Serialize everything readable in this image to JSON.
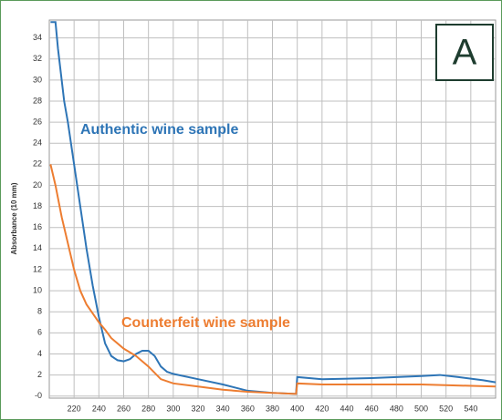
{
  "chart_data": {
    "type": "line",
    "panel_label": "A",
    "y_label": "Absorbance (10 mm)",
    "xlim": [
      200,
      560
    ],
    "xticks": [
      220,
      240,
      260,
      280,
      300,
      320,
      340,
      360,
      380,
      400,
      420,
      440,
      460,
      480,
      500,
      520,
      540
    ],
    "ylim": [
      -0.2,
      35.7
    ],
    "yticks": [
      {
        "value": 0,
        "label": "-0"
      },
      2,
      4,
      6,
      8,
      10,
      12,
      14,
      16,
      18,
      20,
      22,
      24,
      26,
      28,
      30,
      32,
      34
    ],
    "grid": true,
    "series": [
      {
        "name": "Authentic wine sample",
        "color": "#2e75b6",
        "x": [
          201,
          205,
          207,
          210,
          212,
          215,
          220,
          225,
          230,
          235,
          240,
          245,
          250,
          255,
          260,
          265,
          270,
          275,
          280,
          285,
          290,
          295,
          300,
          320,
          340,
          360,
          380,
          399,
          400,
          420,
          460,
          500,
          515,
          530,
          550,
          560
        ],
        "values": [
          35.5,
          35.5,
          33,
          30,
          28,
          26,
          22,
          18,
          14,
          10.5,
          7.5,
          5,
          3.8,
          3.4,
          3.3,
          3.5,
          4,
          4.3,
          4.3,
          3.8,
          2.8,
          2.3,
          2.1,
          1.6,
          1.1,
          0.5,
          0.3,
          0.2,
          1.8,
          1.6,
          1.7,
          1.9,
          2.0,
          1.8,
          1.5,
          1.3
        ]
      },
      {
        "name": "Counterfeit wine sample",
        "color": "#ed7d31",
        "x": [
          201,
          205,
          210,
          215,
          220,
          225,
          230,
          240,
          245,
          250,
          260,
          270,
          280,
          290,
          300,
          320,
          340,
          360,
          380,
          399,
          400,
          420,
          500,
          560
        ],
        "values": [
          22,
          20,
          17,
          14.5,
          12,
          10,
          8.7,
          7,
          6.3,
          5.5,
          4.5,
          3.8,
          2.8,
          1.6,
          1.2,
          0.9,
          0.6,
          0.4,
          0.3,
          0.2,
          1.2,
          1.1,
          1.1,
          0.9
        ]
      }
    ]
  }
}
